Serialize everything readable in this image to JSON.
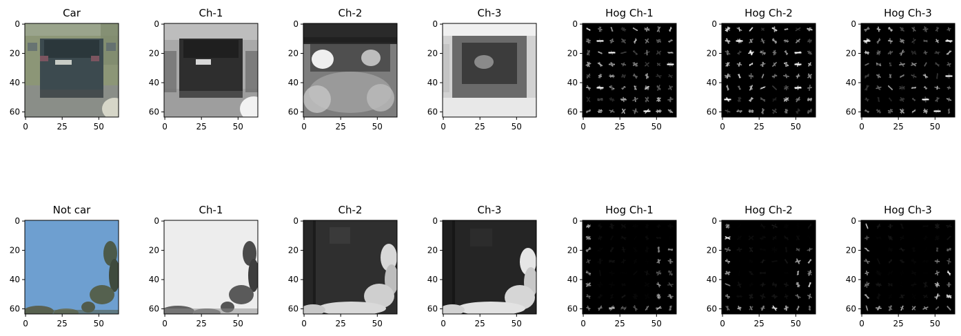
{
  "figure": {
    "rows": [
      {
        "row_name": "car",
        "panels": [
          {
            "title": "Car",
            "kind": "car-photo",
            "name": "car-image"
          },
          {
            "title": "Ch-1",
            "kind": "car-ch1",
            "name": "car-ch1-image"
          },
          {
            "title": "Ch-2",
            "kind": "car-ch2",
            "name": "car-ch2-image"
          },
          {
            "title": "Ch-3",
            "kind": "car-ch3",
            "name": "car-ch3-image"
          },
          {
            "title": "Hog Ch-1",
            "kind": "hog",
            "seed": 11,
            "intensity": 0.9,
            "name": "car-hog-ch1-image"
          },
          {
            "title": "Hog Ch-2",
            "kind": "hog",
            "seed": 23,
            "intensity": 1.0,
            "name": "car-hog-ch2-image"
          },
          {
            "title": "Hog Ch-3",
            "kind": "hog",
            "seed": 37,
            "intensity": 0.8,
            "name": "car-hog-ch3-image"
          }
        ]
      },
      {
        "row_name": "notcar",
        "panels": [
          {
            "title": "Not car",
            "kind": "sky-photo",
            "name": "notcar-image"
          },
          {
            "title": "Ch-1",
            "kind": "sky-ch1",
            "name": "notcar-ch1-image"
          },
          {
            "title": "Ch-2",
            "kind": "sky-ch2",
            "name": "notcar-ch2-image"
          },
          {
            "title": "Ch-3",
            "kind": "sky-ch3",
            "name": "notcar-ch3-image"
          },
          {
            "title": "Hog Ch-1",
            "kind": "hog-sparse",
            "seed": 5,
            "intensity": 0.7,
            "name": "notcar-hog-ch1-image"
          },
          {
            "title": "Hog Ch-2",
            "kind": "hog-sparse",
            "seed": 9,
            "intensity": 0.9,
            "name": "notcar-hog-ch2-image"
          },
          {
            "title": "Hog Ch-3",
            "kind": "hog-sparse",
            "seed": 17,
            "intensity": 0.9,
            "name": "notcar-hog-ch3-image"
          }
        ]
      }
    ],
    "axes": {
      "y_ticks": [
        "0",
        "20",
        "40",
        "60"
      ],
      "x_ticks": [
        "0",
        "25",
        "50"
      ],
      "y_values": [
        0,
        20,
        40,
        60
      ],
      "x_values": [
        0,
        25,
        50
      ],
      "extent": 64
    }
  }
}
